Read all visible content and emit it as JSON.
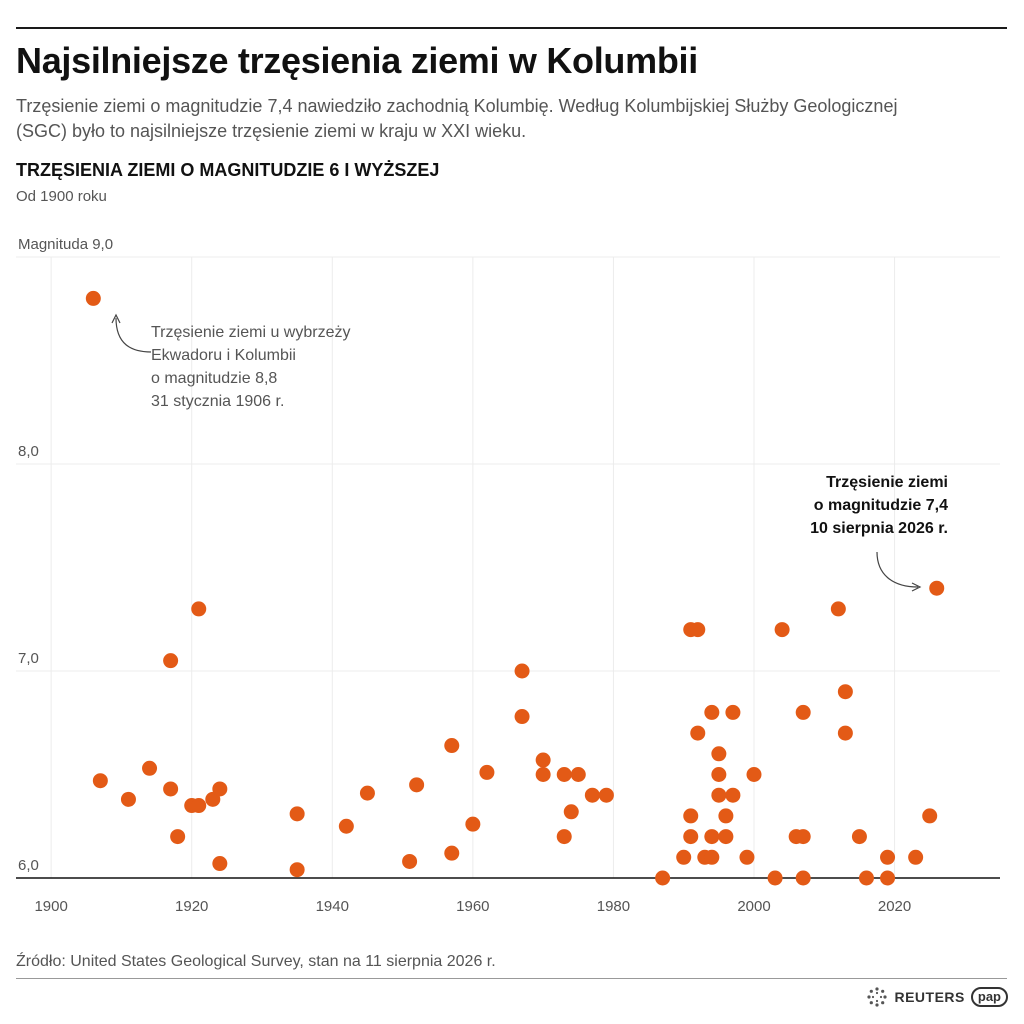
{
  "header": {
    "title": "Najsilniejsze trzęsienia ziemi w Kolumbii",
    "subtitle": "Trzęsienie ziemi o magnitudzie 7,4 nawiedziło zachodnią Kolumbię. Według Kolumbijskiej Służby Geologicznej (SGC) było to najsilniejsze trzęsienie ziemi w kraju w XXI wieku.",
    "section_title": "TRZĘSIENIA ZIEMI O MAGNITUDZIE 6 I WYŻSZEJ",
    "since": "Od 1900 roku"
  },
  "footer": {
    "source": "Źródło: United States Geological Survey, stan na 11 sierpnia 2026 r.",
    "reuters": "REUTERS",
    "pap": "pap"
  },
  "chart_data": {
    "type": "scatter",
    "xlim": [
      1895,
      2035
    ],
    "ylim": [
      6.0,
      9.0
    ],
    "x_ticks": [
      1900,
      1920,
      1940,
      1960,
      1980,
      2000,
      2020
    ],
    "x_tick_labels": [
      "1900",
      "1920",
      "1940",
      "1960",
      "1980",
      "2000",
      "2020"
    ],
    "y_ticks": [
      6.0,
      7.0,
      8.0,
      9.0
    ],
    "y_tick_labels": [
      "6,0",
      "7,0",
      "8,0",
      "Magnituda 9,0"
    ],
    "grid": "vertical and horizontal",
    "color": "#e35a16",
    "annotations": [
      {
        "x": 1906,
        "y": 8.8,
        "lines": [
          "Trzęsienie ziemi u wybrzeży",
          "Ekwadoru i Kolumbii",
          "o magnitudzie 8,8",
          "31 stycznia 1906 r."
        ]
      },
      {
        "x": 2026,
        "y": 7.4,
        "lines": [
          "Trzęsienie ziemi",
          "o magnitudzie 7,4",
          "10 sierpnia 2026 r."
        ],
        "bold": true
      }
    ],
    "points": [
      {
        "x": 1906,
        "y": 8.8
      },
      {
        "x": 1907,
        "y": 6.47
      },
      {
        "x": 1911,
        "y": 6.38
      },
      {
        "x": 1914,
        "y": 6.53
      },
      {
        "x": 1917,
        "y": 6.43
      },
      {
        "x": 1917,
        "y": 7.05
      },
      {
        "x": 1918,
        "y": 6.2
      },
      {
        "x": 1920,
        "y": 6.35
      },
      {
        "x": 1921,
        "y": 6.35
      },
      {
        "x": 1921,
        "y": 7.3
      },
      {
        "x": 1923,
        "y": 6.38
      },
      {
        "x": 1924,
        "y": 6.43
      },
      {
        "x": 1924,
        "y": 6.07
      },
      {
        "x": 1935,
        "y": 6.31
      },
      {
        "x": 1935,
        "y": 6.04
      },
      {
        "x": 1942,
        "y": 6.25
      },
      {
        "x": 1945,
        "y": 6.41
      },
      {
        "x": 1951,
        "y": 6.08
      },
      {
        "x": 1952,
        "y": 6.45
      },
      {
        "x": 1957,
        "y": 6.64
      },
      {
        "x": 1957,
        "y": 6.12
      },
      {
        "x": 1960,
        "y": 6.26
      },
      {
        "x": 1962,
        "y": 6.51
      },
      {
        "x": 1967,
        "y": 7.0
      },
      {
        "x": 1967,
        "y": 6.78
      },
      {
        "x": 1970,
        "y": 6.57
      },
      {
        "x": 1970,
        "y": 6.5
      },
      {
        "x": 1973,
        "y": 6.5
      },
      {
        "x": 1973,
        "y": 6.2
      },
      {
        "x": 1974,
        "y": 6.32
      },
      {
        "x": 1975,
        "y": 6.5
      },
      {
        "x": 1977,
        "y": 6.4
      },
      {
        "x": 1979,
        "y": 6.4
      },
      {
        "x": 1987,
        "y": 6.0
      },
      {
        "x": 1990,
        "y": 6.1
      },
      {
        "x": 1991,
        "y": 7.2
      },
      {
        "x": 1991,
        "y": 6.3
      },
      {
        "x": 1991,
        "y": 6.2
      },
      {
        "x": 1992,
        "y": 7.2
      },
      {
        "x": 1992,
        "y": 6.7
      },
      {
        "x": 1993,
        "y": 6.1
      },
      {
        "x": 1994,
        "y": 6.8
      },
      {
        "x": 1994,
        "y": 6.2
      },
      {
        "x": 1994,
        "y": 6.1
      },
      {
        "x": 1995,
        "y": 6.6
      },
      {
        "x": 1995,
        "y": 6.5
      },
      {
        "x": 1995,
        "y": 6.4
      },
      {
        "x": 1996,
        "y": 6.3
      },
      {
        "x": 1996,
        "y": 6.2
      },
      {
        "x": 1997,
        "y": 6.8
      },
      {
        "x": 1997,
        "y": 6.4
      },
      {
        "x": 1999,
        "y": 6.1
      },
      {
        "x": 2000,
        "y": 6.5
      },
      {
        "x": 2003,
        "y": 6.0
      },
      {
        "x": 2004,
        "y": 7.2
      },
      {
        "x": 2006,
        "y": 6.2
      },
      {
        "x": 2007,
        "y": 6.2
      },
      {
        "x": 2007,
        "y": 6.8
      },
      {
        "x": 2007,
        "y": 6.0
      },
      {
        "x": 2012,
        "y": 7.3
      },
      {
        "x": 2013,
        "y": 6.9
      },
      {
        "x": 2013,
        "y": 6.7
      },
      {
        "x": 2015,
        "y": 6.2
      },
      {
        "x": 2016,
        "y": 6.0
      },
      {
        "x": 2019,
        "y": 6.1
      },
      {
        "x": 2019,
        "y": 6.0
      },
      {
        "x": 2023,
        "y": 6.1
      },
      {
        "x": 2025,
        "y": 6.3
      },
      {
        "x": 2026,
        "y": 7.4
      }
    ]
  }
}
